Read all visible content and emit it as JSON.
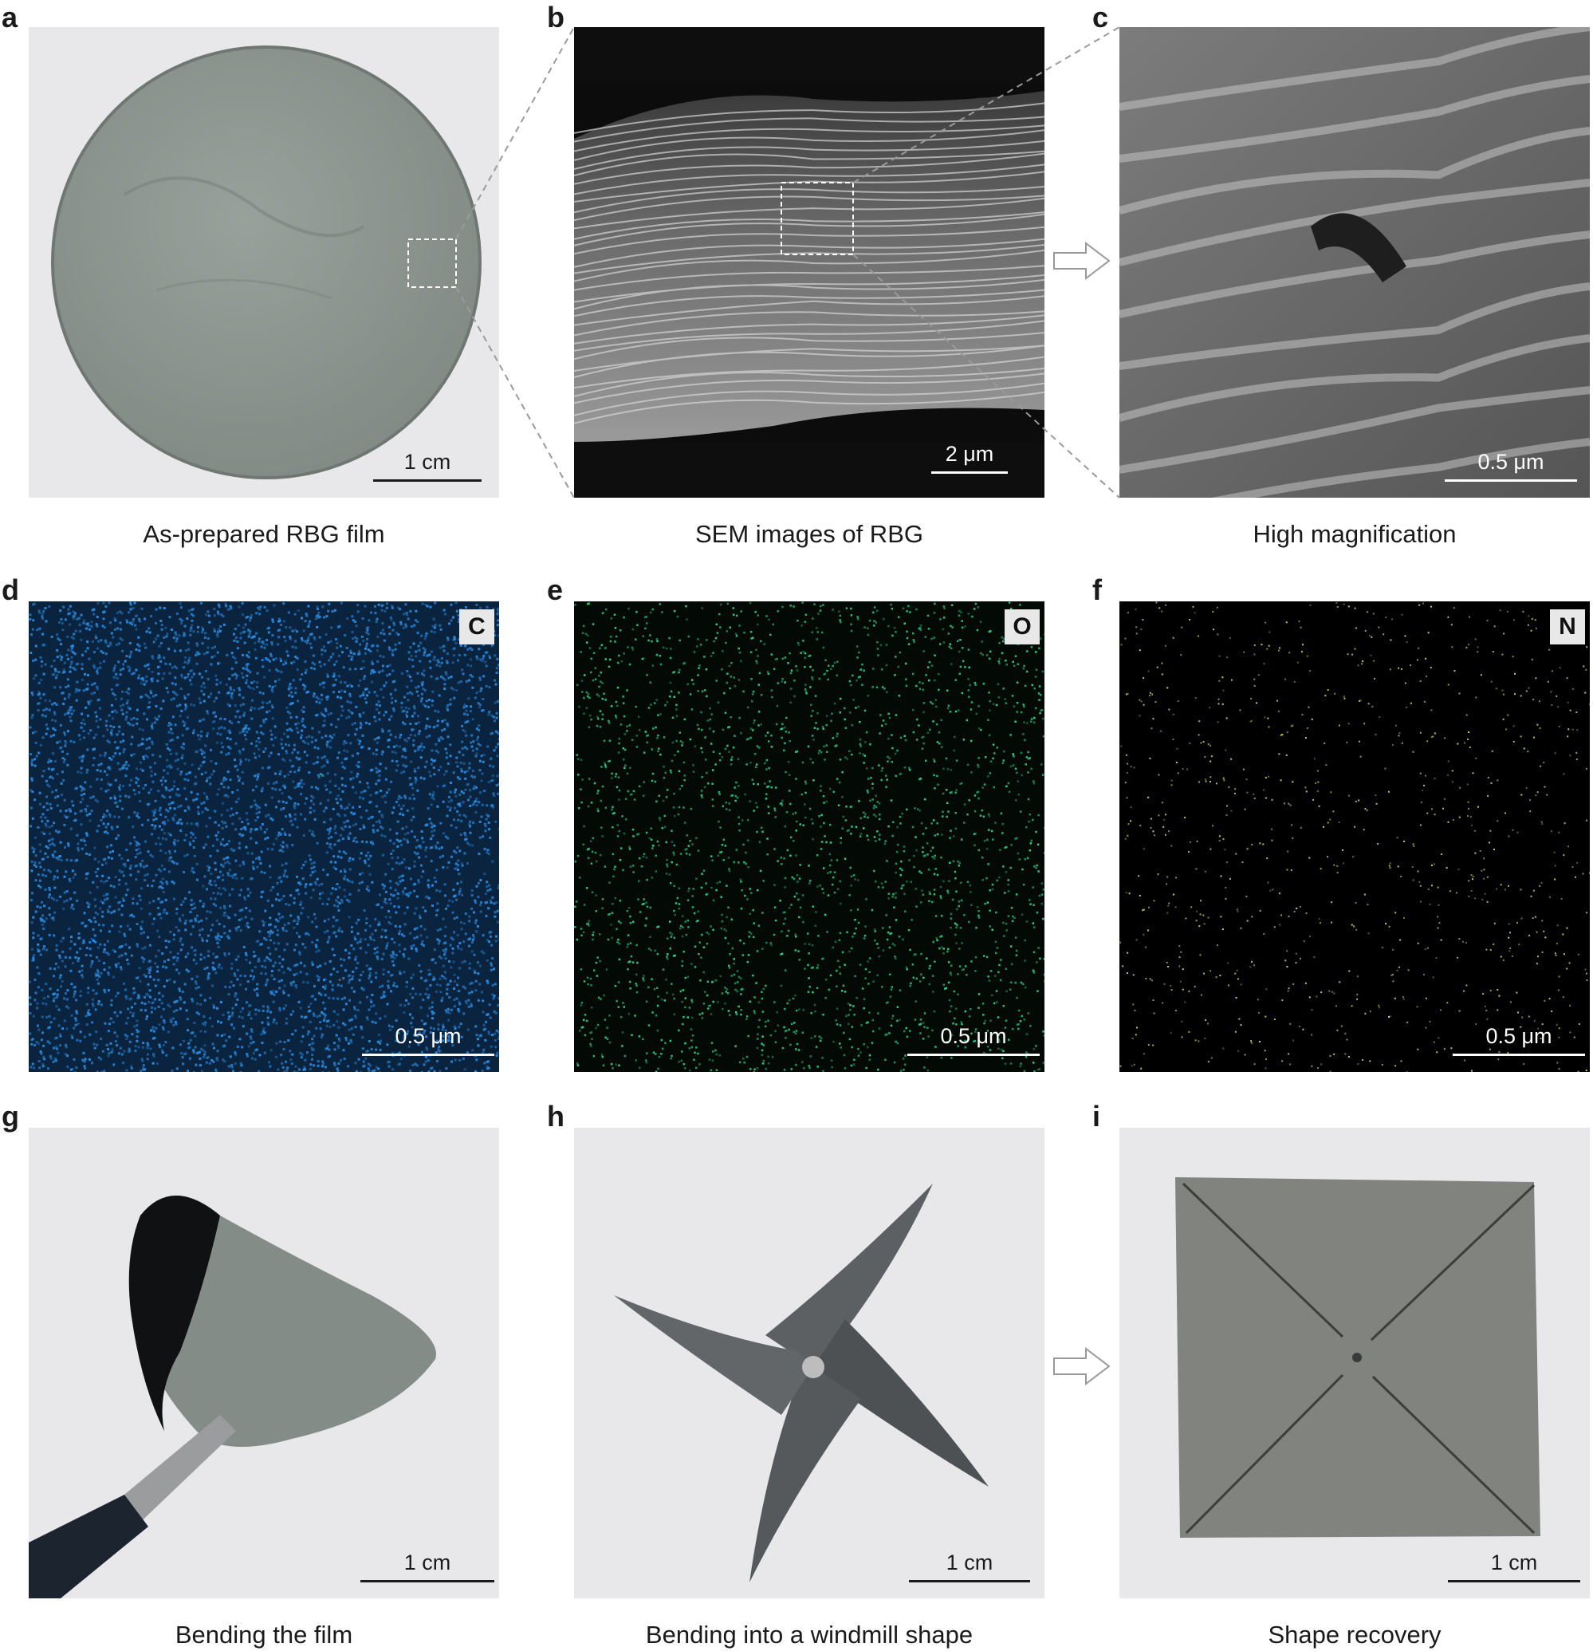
{
  "panels": [
    {
      "id": "a",
      "label": "a",
      "caption": "As-prepared RBG film",
      "scale": "1 cm",
      "element": ""
    },
    {
      "id": "b",
      "label": "b",
      "caption": "SEM images of RBG",
      "scale": "2 μm",
      "element": ""
    },
    {
      "id": "c",
      "label": "c",
      "caption": "High magnification",
      "scale": "0.5 μm",
      "element": ""
    },
    {
      "id": "d",
      "label": "d",
      "caption": "",
      "scale": "0.5 μm",
      "element": "C"
    },
    {
      "id": "e",
      "label": "e",
      "caption": "",
      "scale": "0.5 μm",
      "element": "O"
    },
    {
      "id": "f",
      "label": "f",
      "caption": "",
      "scale": "0.5 μm",
      "element": "N"
    },
    {
      "id": "g",
      "label": "g",
      "caption": "Bending the film",
      "scale": "1 cm",
      "element": ""
    },
    {
      "id": "h",
      "label": "h",
      "caption": "Bending into a windmill shape",
      "scale": "1 cm",
      "element": ""
    },
    {
      "id": "i",
      "label": "i",
      "caption": "Shape recovery",
      "scale": "1 cm",
      "element": ""
    }
  ],
  "colors": {
    "carbon": "#2b8be0",
    "oxygen": "#2ecf8a",
    "nitrogen": "#c8d060",
    "film": "#8c948f",
    "background": "#e9e9ea"
  }
}
